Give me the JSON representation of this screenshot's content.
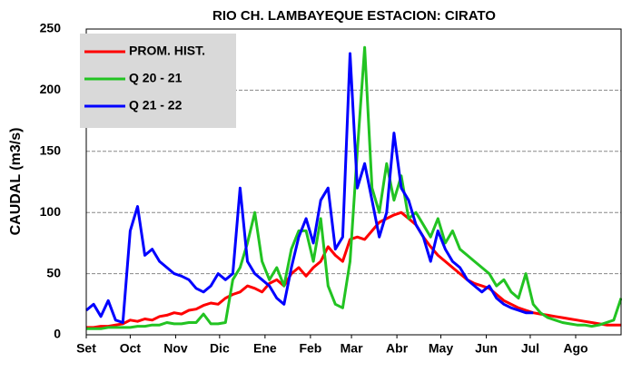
{
  "chart_data": {
    "type": "line",
    "title": "RIO CH. LAMBAYEQUE  ESTACION:  CIRATO",
    "y_label": "CAUDAL (m3/s)",
    "x": [
      0,
      5,
      10,
      15,
      20,
      25,
      30,
      35,
      40,
      45,
      50,
      55,
      60,
      65,
      70,
      75,
      80,
      85,
      90,
      95,
      100,
      105,
      110,
      115,
      120,
      125,
      130,
      135,
      140,
      145,
      150,
      155,
      160,
      165,
      170,
      175,
      180,
      185,
      190,
      195,
      200,
      205,
      210,
      215,
      220,
      225,
      230,
      235,
      240,
      245,
      250,
      255,
      260,
      265,
      270,
      275,
      280,
      285,
      290,
      295,
      300,
      305,
      310,
      315,
      320,
      325,
      330,
      335,
      340,
      345,
      350,
      355,
      360,
      365
    ],
    "xlim": [
      0,
      365
    ],
    "xticks": [
      {
        "value": 0,
        "label": "Set"
      },
      {
        "value": 30,
        "label": "Oct"
      },
      {
        "value": 61,
        "label": "Nov"
      },
      {
        "value": 91,
        "label": "Dic"
      },
      {
        "value": 122,
        "label": "Ene"
      },
      {
        "value": 153,
        "label": "Feb"
      },
      {
        "value": 181,
        "label": "Mar"
      },
      {
        "value": 212,
        "label": "Abr"
      },
      {
        "value": 242,
        "label": "May"
      },
      {
        "value": 273,
        "label": "Jun"
      },
      {
        "value": 303,
        "label": "Jul"
      },
      {
        "value": 334,
        "label": "Ago"
      }
    ],
    "ylim": [
      0,
      250
    ],
    "yticks": [
      0,
      50,
      100,
      150,
      200,
      250
    ],
    "grid": true,
    "legend": "upper left",
    "series": [
      {
        "name": "PROM. HIST.",
        "color": "#ff0000",
        "values": [
          6,
          6,
          7,
          7,
          8,
          9,
          12,
          11,
          13,
          12,
          15,
          16,
          18,
          17,
          20,
          21,
          24,
          26,
          25,
          30,
          33,
          35,
          40,
          38,
          35,
          42,
          45,
          40,
          50,
          55,
          48,
          55,
          60,
          72,
          65,
          60,
          78,
          80,
          78,
          85,
          92,
          95,
          98,
          100,
          95,
          90,
          80,
          72,
          65,
          60,
          55,
          50,
          45,
          42,
          40,
          38,
          33,
          28,
          25,
          22,
          20,
          18,
          17,
          16,
          15,
          14,
          13,
          12,
          11,
          10,
          9,
          8,
          8,
          8
        ]
      },
      {
        "name": "Q 20 - 21",
        "color": "#22c322",
        "values": [
          5,
          5,
          5,
          6,
          6,
          6,
          6,
          7,
          7,
          8,
          8,
          10,
          9,
          9,
          10,
          10,
          17,
          9,
          9,
          10,
          45,
          55,
          75,
          100,
          60,
          45,
          55,
          40,
          70,
          85,
          85,
          60,
          95,
          40,
          25,
          22,
          60,
          150,
          235,
          120,
          100,
          140,
          110,
          130,
          95,
          100,
          90,
          80,
          95,
          75,
          85,
          70,
          65,
          60,
          55,
          50,
          40,
          45,
          35,
          30,
          50,
          25,
          18,
          14,
          12,
          10,
          9,
          8,
          8,
          7,
          8,
          10,
          12,
          30
        ]
      },
      {
        "name": "Q 21 - 22",
        "color": "#0000ff",
        "values": [
          20,
          25,
          15,
          28,
          12,
          10,
          85,
          105,
          65,
          70,
          60,
          55,
          50,
          48,
          45,
          38,
          35,
          40,
          50,
          45,
          50,
          120,
          60,
          50,
          45,
          40,
          30,
          25,
          55,
          80,
          95,
          75,
          110,
          120,
          70,
          80,
          230,
          120,
          140,
          110,
          80,
          100,
          165,
          120,
          110,
          90,
          80,
          60,
          85,
          70,
          60,
          55,
          45,
          40,
          35,
          40,
          30,
          25,
          22,
          20,
          18,
          18,
          null,
          null,
          null,
          null,
          null,
          null,
          null,
          null,
          null,
          null,
          null,
          null
        ]
      }
    ]
  }
}
